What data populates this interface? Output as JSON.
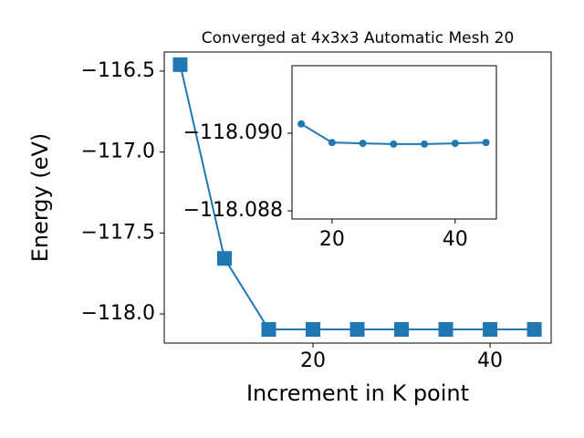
{
  "chart_data": [
    {
      "type": "line",
      "title": "Converged at 4x3x3 Automatic Mesh 20",
      "x_label": "Increment in K point",
      "y_label": "Energy (eV)",
      "x": [
        5,
        10,
        15,
        20,
        25,
        30,
        35,
        40,
        45
      ],
      "series": [
        {
          "color": "#1f77b4",
          "marker": "square",
          "values": [
            -116.46,
            -117.657,
            -118.0955,
            -118.0955,
            -118.0955,
            -118.0955,
            -118.0955,
            -118.0955,
            -118.0955
          ]
        }
      ],
      "xlim": [
        3.2,
        46.9
      ],
      "ylim": [
        -118.18,
        -116.382
      ],
      "xticks": [
        20,
        40
      ],
      "yticks": [
        {
          "value": -116.5,
          "label": "−116.5"
        },
        {
          "value": -117.0,
          "label": "−117.0"
        },
        {
          "value": -117.5,
          "label": "−117.5"
        },
        {
          "value": -118.0,
          "label": "−118.0"
        }
      ]
    },
    {
      "type": "line",
      "x": [
        15,
        20,
        25,
        30,
        35,
        40,
        45
      ],
      "series": [
        {
          "color": "#1f77b4",
          "marker": "circle",
          "values": [
            -118.09024,
            -118.08976,
            -118.08974,
            -118.08972,
            -118.08972,
            -118.08974,
            -118.08976
          ]
        }
      ],
      "xlim": [
        13.5,
        46.7
      ],
      "ylim": [
        -118.08779,
        -118.09174
      ],
      "xticks": [
        20,
        40
      ],
      "yticks": [
        {
          "value": -118.09,
          "label": "−118.090"
        },
        {
          "value": -118.088,
          "label": "−118.088"
        }
      ]
    }
  ]
}
